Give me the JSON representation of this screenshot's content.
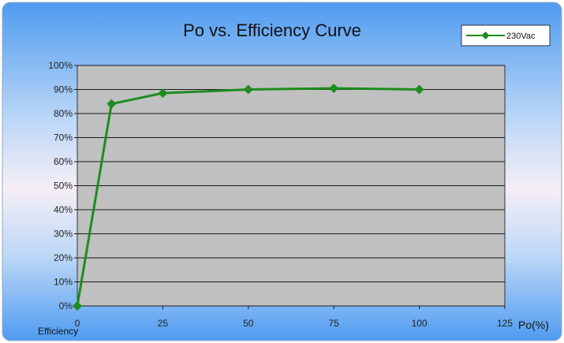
{
  "chart_data": {
    "type": "line",
    "title": "Po  vs. Efficiency Curve",
    "xlabel": "Po(%)",
    "ylabel": "Efficiency",
    "xlim": [
      0,
      125
    ],
    "ylim": [
      0,
      100
    ],
    "x_ticks": [
      0,
      25,
      50,
      75,
      100,
      125
    ],
    "y_ticks": [
      0,
      10,
      20,
      30,
      40,
      50,
      60,
      70,
      80,
      90,
      100
    ],
    "y_tick_suffix": "%",
    "grid": true,
    "legend_position": "top-right",
    "series": [
      {
        "name": "230Vac",
        "color": "#1e8c1e",
        "x": [
          0,
          10,
          25,
          50,
          75,
          100
        ],
        "y": [
          0,
          84,
          88.5,
          90,
          90.5,
          90
        ]
      }
    ]
  }
}
